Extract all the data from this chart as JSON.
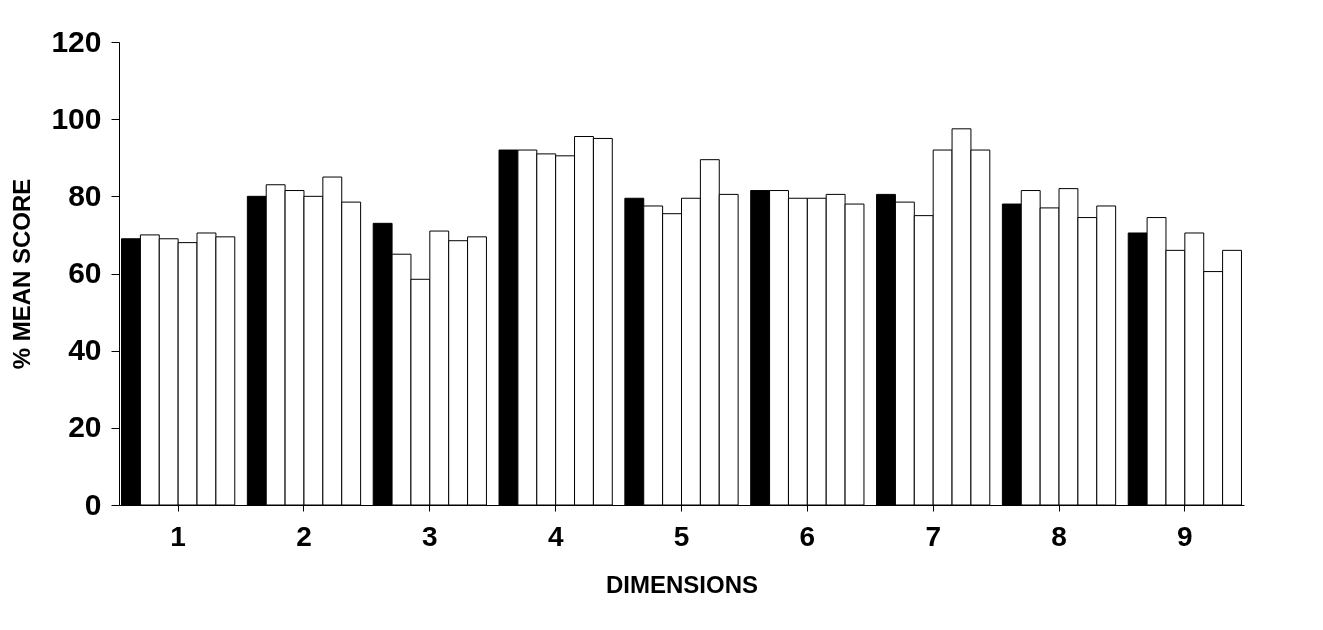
{
  "chart_data": {
    "type": "bar",
    "xlabel": "DIMENSIONS",
    "ylabel": "% MEAN SCORE",
    "categories": [
      "1",
      "2",
      "3",
      "4",
      "5",
      "6",
      "7",
      "8",
      "9"
    ],
    "ylim": [
      0,
      120
    ],
    "yticks": [
      0,
      20,
      40,
      60,
      80,
      100,
      120
    ],
    "grid": false,
    "legend": false,
    "series": [
      {
        "color": "#000000",
        "values": [
          69,
          80,
          73,
          92,
          79.5,
          81.5,
          80.5,
          78,
          70.5
        ]
      },
      {
        "color": "#ffffff",
        "values": [
          70,
          83,
          65,
          92,
          77.5,
          81.5,
          78.5,
          81.5,
          74.5
        ]
      },
      {
        "color": "#ffffff",
        "values": [
          69,
          81.5,
          58.5,
          91,
          75.5,
          79.5,
          75,
          77,
          66
        ]
      },
      {
        "color": "#ffffff",
        "values": [
          68,
          80,
          71,
          90.5,
          79.5,
          79.5,
          92,
          82,
          70.5
        ]
      },
      {
        "color": "#ffffff",
        "values": [
          70.5,
          85,
          68.5,
          95.5,
          89.5,
          80.5,
          97.5,
          74.5,
          60.5
        ]
      },
      {
        "color": "#ffffff",
        "values": [
          69.5,
          78.5,
          69.5,
          95,
          80.5,
          78,
          92,
          77.5,
          66
        ]
      }
    ]
  }
}
